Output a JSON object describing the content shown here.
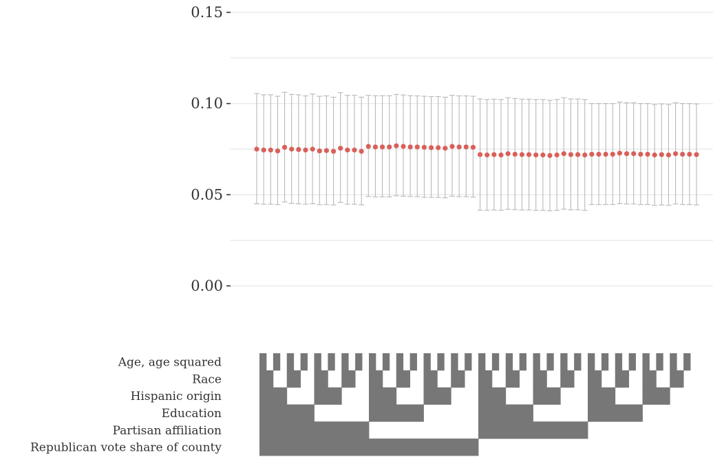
{
  "chart_data": {
    "type": "scatter",
    "title": "",
    "xlabel": "",
    "ylabel": "",
    "ylim": [
      -0.01,
      0.155
    ],
    "y_ticks": [
      {
        "value": 0.15,
        "label": "0.15"
      },
      {
        "value": 0.1,
        "label": "0.10"
      },
      {
        "value": 0.05,
        "label": "0.05"
      },
      {
        "value": 0.0,
        "label": "0.00"
      }
    ],
    "grid": true,
    "point_color": "#d9605a",
    "errorbar_color": "#b8b8b8",
    "specification_fill": "#777777",
    "estimates": [
      0.075,
      0.0745,
      0.0745,
      0.074,
      0.076,
      0.075,
      0.0748,
      0.0745,
      0.075,
      0.074,
      0.0742,
      0.0738,
      0.0755,
      0.0745,
      0.0745,
      0.0738,
      0.0765,
      0.0762,
      0.0762,
      0.0762,
      0.0768,
      0.0765,
      0.0762,
      0.0762,
      0.076,
      0.0758,
      0.0758,
      0.0755,
      0.0765,
      0.0762,
      0.0762,
      0.076,
      0.072,
      0.0718,
      0.072,
      0.0718,
      0.0725,
      0.0722,
      0.072,
      0.072,
      0.0718,
      0.0718,
      0.0715,
      0.0718,
      0.0725,
      0.072,
      0.072,
      0.0718,
      0.0722,
      0.0722,
      0.0722,
      0.0722,
      0.0728,
      0.0725,
      0.0725,
      0.0722,
      0.0722,
      0.0718,
      0.072,
      0.0718,
      0.0725,
      0.0722,
      0.0722,
      0.072
    ],
    "ci_lower": [
      0.045,
      0.0448,
      0.0448,
      0.0446,
      0.046,
      0.0452,
      0.045,
      0.0448,
      0.045,
      0.0445,
      0.0446,
      0.0444,
      0.0458,
      0.0448,
      0.0448,
      0.0444,
      0.049,
      0.0488,
      0.0488,
      0.0488,
      0.0494,
      0.0492,
      0.049,
      0.0489,
      0.0486,
      0.0485,
      0.0485,
      0.0483,
      0.0492,
      0.0489,
      0.0489,
      0.0487,
      0.0415,
      0.0414,
      0.0416,
      0.0414,
      0.042,
      0.0418,
      0.0416,
      0.0416,
      0.0414,
      0.0414,
      0.0412,
      0.0414,
      0.0421,
      0.0417,
      0.0417,
      0.0414,
      0.0446,
      0.0446,
      0.0446,
      0.0446,
      0.0451,
      0.0449,
      0.0449,
      0.0446,
      0.0446,
      0.0442,
      0.0444,
      0.0442,
      0.0449,
      0.0446,
      0.0446,
      0.0444
    ],
    "ci_upper": [
      0.1055,
      0.1048,
      0.1048,
      0.104,
      0.1062,
      0.105,
      0.1048,
      0.1042,
      0.1052,
      0.104,
      0.1042,
      0.1035,
      0.106,
      0.1045,
      0.1045,
      0.1035,
      0.1045,
      0.1043,
      0.1043,
      0.1043,
      0.105,
      0.1047,
      0.1043,
      0.1042,
      0.104,
      0.1038,
      0.1038,
      0.1035,
      0.1045,
      0.1042,
      0.1042,
      0.104,
      0.1025,
      0.1022,
      0.1024,
      0.1022,
      0.1032,
      0.1028,
      0.1024,
      0.1024,
      0.1022,
      0.1022,
      0.1018,
      0.1022,
      0.1032,
      0.1025,
      0.1025,
      0.1022,
      0.1,
      0.1,
      0.1,
      0.1,
      0.1008,
      0.1004,
      0.1004,
      0.1,
      0.1,
      0.0995,
      0.0998,
      0.0995,
      0.1004,
      0.1,
      0.1,
      0.0998
    ],
    "specification_rows": [
      "Age, age squared",
      "Race",
      "Hispanic origin",
      "Education",
      "Partisan affiliation",
      "Republican vote share of county"
    ]
  }
}
